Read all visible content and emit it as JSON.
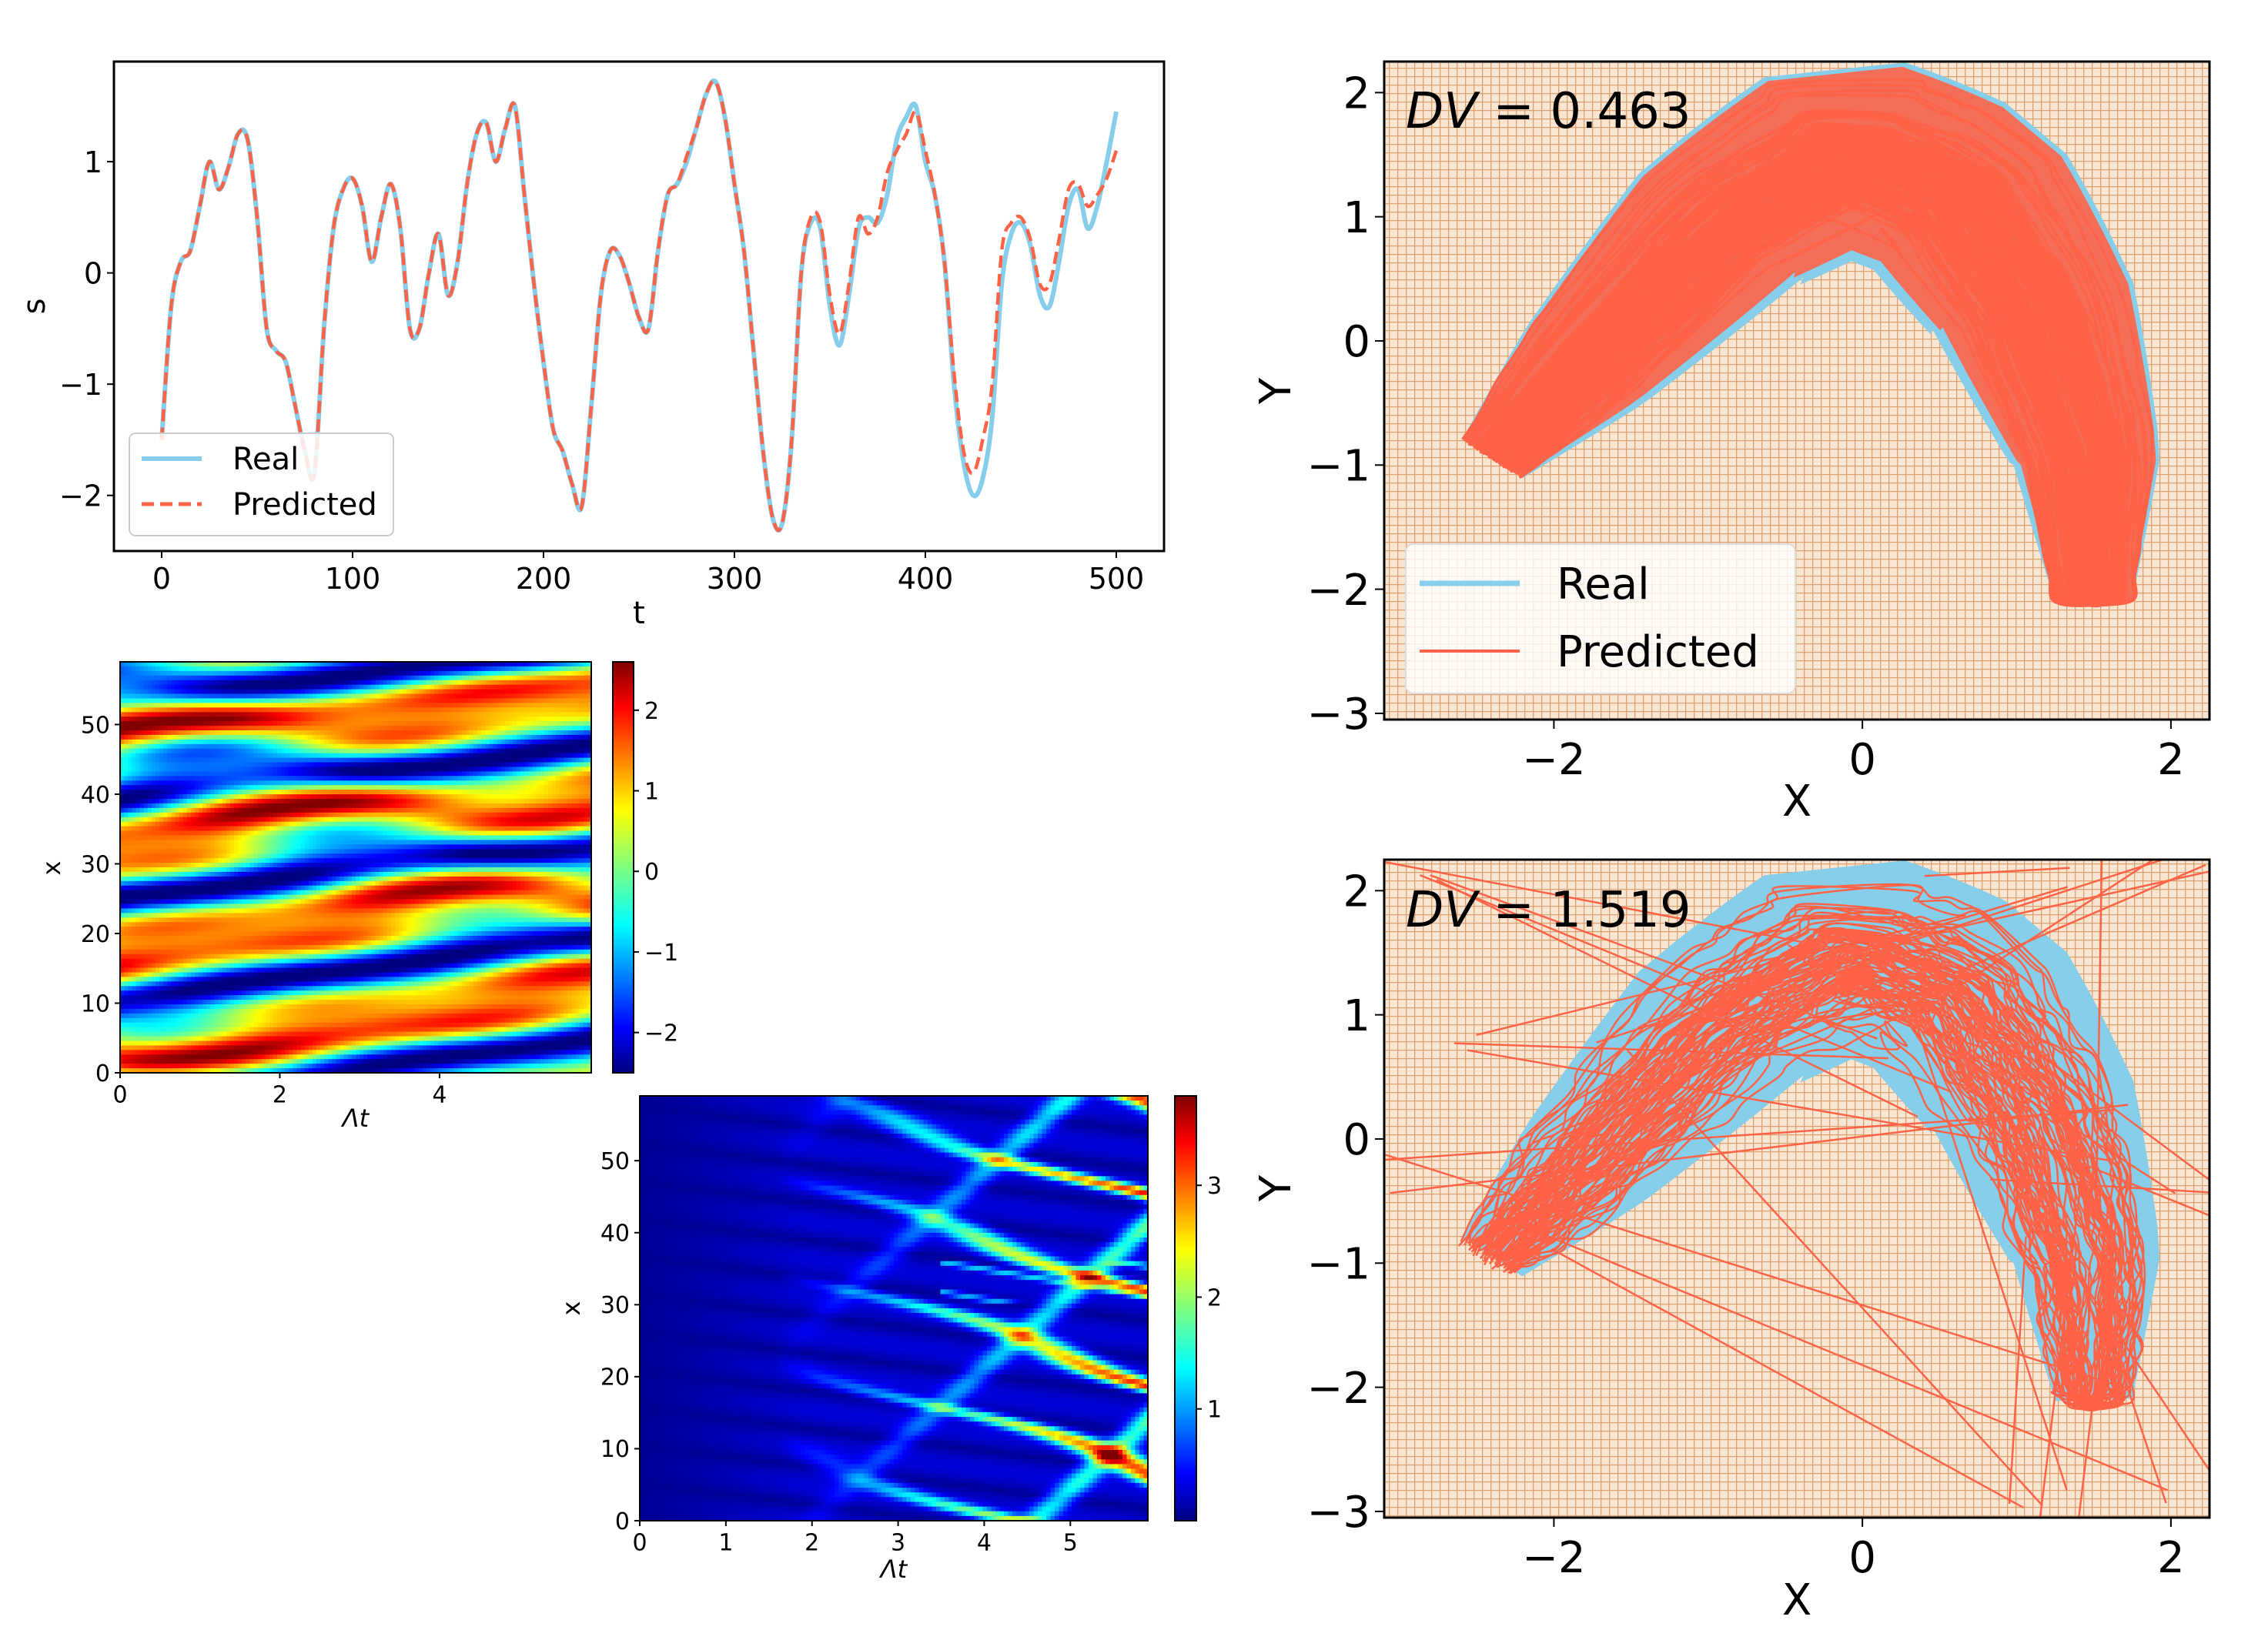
{
  "colors": {
    "real": "#87ceeb",
    "predicted": "#ff6347",
    "grid": "#dfa070",
    "gridBg": "#f9e6d2"
  },
  "chart_data": [
    {
      "id": "timeseries",
      "type": "line",
      "title": "",
      "xlabel": "t",
      "ylabel": "s",
      "xlim": [
        -25,
        525
      ],
      "ylim": [
        -2.5,
        1.9
      ],
      "xticks": [
        0,
        100,
        200,
        300,
        400,
        500
      ],
      "xtick_labels": [
        "0",
        "100",
        "200",
        "300",
        "400",
        "500"
      ],
      "yticks": [
        -2,
        -1,
        0,
        1
      ],
      "ytick_labels": [
        "−2",
        "−1",
        "0",
        "1"
      ],
      "legend": {
        "position": "lower-left",
        "entries": [
          "Real",
          "Predicted"
        ]
      },
      "series": [
        {
          "name": "Real",
          "style": "solid",
          "x": [
            0,
            5,
            10,
            15,
            20,
            25,
            30,
            35,
            40,
            45,
            50,
            55,
            60,
            65,
            70,
            75,
            80,
            85,
            90,
            95,
            100,
            105,
            110,
            115,
            120,
            125,
            130,
            135,
            140,
            145,
            150,
            155,
            160,
            165,
            170,
            175,
            180,
            185,
            190,
            195,
            200,
            205,
            210,
            215,
            220,
            225,
            230,
            235,
            240,
            245,
            250,
            255,
            260,
            265,
            270,
            275,
            280,
            285,
            290,
            295,
            300,
            305,
            310,
            315,
            320,
            325,
            330,
            335,
            340,
            345,
            350,
            355,
            360,
            365,
            370,
            375,
            380,
            385,
            390,
            395,
            400,
            405,
            410,
            415,
            420,
            425,
            430,
            435,
            440,
            445,
            450,
            455,
            460,
            465,
            470,
            475,
            480,
            485,
            490,
            495,
            500
          ],
          "y": [
            -1.5,
            -0.3,
            0.1,
            0.2,
            0.6,
            1.0,
            0.75,
            0.95,
            1.25,
            1.2,
            0.5,
            -0.5,
            -0.7,
            -0.8,
            -1.2,
            -1.6,
            -1.8,
            -0.5,
            0.4,
            0.75,
            0.85,
            0.6,
            0.1,
            0.5,
            0.8,
            0.4,
            -0.5,
            -0.5,
            0.0,
            0.35,
            -0.2,
            0.1,
            0.8,
            1.25,
            1.35,
            1.0,
            1.3,
            1.5,
            0.7,
            -0.1,
            -0.8,
            -1.4,
            -1.6,
            -1.9,
            -2.1,
            -1.2,
            -0.2,
            0.2,
            0.15,
            -0.1,
            -0.4,
            -0.5,
            0.2,
            0.7,
            0.8,
            1.0,
            1.3,
            1.6,
            1.72,
            1.4,
            0.8,
            0.2,
            -0.7,
            -1.6,
            -2.2,
            -2.25,
            -1.5,
            0.0,
            0.45,
            0.4,
            -0.3,
            -0.65,
            -0.2,
            0.4,
            0.5,
            0.45,
            0.7,
            1.2,
            1.4,
            1.5,
            1.0,
            0.7,
            0.1,
            -1.0,
            -1.7,
            -2.0,
            -1.85,
            -1.3,
            -0.1,
            0.35,
            0.45,
            0.25,
            -0.2,
            -0.3,
            0.1,
            0.6,
            0.75,
            0.4,
            0.6,
            1.0,
            1.45
          ]
        },
        {
          "name": "Predicted",
          "style": "dashed",
          "x": [
            0,
            5,
            10,
            15,
            20,
            25,
            30,
            35,
            40,
            45,
            50,
            55,
            60,
            65,
            70,
            75,
            80,
            85,
            90,
            95,
            100,
            105,
            110,
            115,
            120,
            125,
            130,
            135,
            140,
            145,
            150,
            155,
            160,
            165,
            170,
            175,
            180,
            185,
            190,
            195,
            200,
            205,
            210,
            215,
            220,
            225,
            230,
            235,
            240,
            245,
            250,
            255,
            260,
            265,
            270,
            275,
            280,
            285,
            290,
            295,
            300,
            305,
            310,
            315,
            320,
            325,
            330,
            335,
            340,
            345,
            350,
            355,
            360,
            365,
            370,
            375,
            380,
            385,
            390,
            395,
            400,
            405,
            410,
            415,
            420,
            425,
            430,
            435,
            440,
            445,
            450,
            455,
            460,
            465,
            470,
            475,
            480,
            485,
            490,
            495,
            500
          ],
          "y": [
            -1.5,
            -0.3,
            0.1,
            0.2,
            0.6,
            1.0,
            0.75,
            0.95,
            1.25,
            1.2,
            0.5,
            -0.5,
            -0.7,
            -0.8,
            -1.2,
            -1.6,
            -1.8,
            -0.5,
            0.4,
            0.75,
            0.85,
            0.6,
            0.1,
            0.5,
            0.8,
            0.4,
            -0.5,
            -0.5,
            0.0,
            0.35,
            -0.2,
            0.1,
            0.8,
            1.25,
            1.35,
            1.0,
            1.3,
            1.5,
            0.7,
            -0.1,
            -0.8,
            -1.4,
            -1.6,
            -1.9,
            -2.1,
            -1.2,
            -0.2,
            0.2,
            0.15,
            -0.1,
            -0.4,
            -0.5,
            0.2,
            0.7,
            0.8,
            1.05,
            1.3,
            1.6,
            1.72,
            1.4,
            0.8,
            0.2,
            -0.7,
            -1.6,
            -2.2,
            -2.25,
            -1.5,
            0.0,
            0.5,
            0.45,
            -0.2,
            -0.55,
            -0.1,
            0.5,
            0.35,
            0.5,
            0.9,
            1.1,
            1.25,
            1.45,
            1.1,
            0.7,
            0.1,
            -0.9,
            -1.6,
            -1.8,
            -1.5,
            -1.0,
            0.2,
            0.45,
            0.5,
            0.3,
            -0.1,
            -0.1,
            0.3,
            0.75,
            0.8,
            0.6,
            0.7,
            0.85,
            1.1
          ]
        }
      ]
    },
    {
      "id": "heatmap-field",
      "type": "heatmap",
      "xlabel": "Λt",
      "ylabel": "x",
      "xlim": [
        0,
        5.9
      ],
      "ylim": [
        0,
        59
      ],
      "xticks": [
        0,
        2,
        4
      ],
      "xtick_labels": [
        "0",
        "2",
        "4"
      ],
      "yticks": [
        0,
        10,
        20,
        30,
        40,
        50
      ],
      "ytick_labels": [
        "0",
        "10",
        "20",
        "30",
        "40",
        "50"
      ],
      "colormap": "jet",
      "vmin": -2.5,
      "vmax": 2.6,
      "colorbar_ticks": [
        -2,
        -1,
        0,
        1,
        2
      ],
      "colorbar_tick_labels": [
        "−2",
        "−1",
        "0",
        "1",
        "2"
      ],
      "description_values": "wavy diagonal stripes of alternating high (red) and low (blue) values"
    },
    {
      "id": "heatmap-error",
      "type": "heatmap",
      "xlabel": "Λt",
      "ylabel": "x",
      "xlim": [
        0,
        5.9
      ],
      "ylim": [
        0,
        59
      ],
      "xticks": [
        0,
        1,
        2,
        3,
        4,
        5
      ],
      "xtick_labels": [
        "0",
        "1",
        "2",
        "3",
        "4",
        "5"
      ],
      "yticks": [
        0,
        10,
        20,
        30,
        40,
        50
      ],
      "ytick_labels": [
        "0",
        "10",
        "20",
        "30",
        "40",
        "50"
      ],
      "colormap": "jet",
      "vmin": 0.0,
      "vmax": 3.8,
      "colorbar_ticks": [
        1,
        2,
        3
      ],
      "colorbar_tick_labels": [
        "1",
        "2",
        "3"
      ],
      "description_values": "near zero for Λt < 2, growing error streaks after Λt ≈ 3"
    },
    {
      "id": "attractor-good",
      "type": "line",
      "annotation": "DV = 0.463",
      "annotation_var": "DV",
      "annotation_value": "= 0.463",
      "xlabel": "X",
      "ylabel": "Y",
      "xlim": [
        -3.1,
        2.25
      ],
      "ylim": [
        -3.05,
        2.25
      ],
      "xticks": [
        -2,
        0,
        2
      ],
      "xtick_labels": [
        "−2",
        "0",
        "2"
      ],
      "yticks": [
        -3,
        -2,
        -1,
        0,
        1,
        2
      ],
      "ytick_labels": [
        "−3",
        "−2",
        "−1",
        "0",
        "1",
        "2"
      ],
      "legend": {
        "position": "lower-left",
        "entries": [
          "Real",
          "Predicted"
        ]
      },
      "series": [
        {
          "name": "Real",
          "shape": "boomerang attractor filled region"
        },
        {
          "name": "Predicted",
          "shape": "boomerang attractor trajectory, matches real"
        }
      ]
    },
    {
      "id": "attractor-bad",
      "type": "line",
      "annotation": "DV = 1.519",
      "annotation_var": "DV",
      "annotation_value": "= 1.519",
      "xlabel": "X",
      "ylabel": "Y",
      "xlim": [
        -3.1,
        2.25
      ],
      "ylim": [
        -3.05,
        2.25
      ],
      "xticks": [
        -2,
        0,
        2
      ],
      "xtick_labels": [
        "−2",
        "0",
        "2"
      ],
      "yticks": [
        -3,
        -2,
        -1,
        0,
        1,
        2
      ],
      "ytick_labels": [
        "−3",
        "−2",
        "−1",
        "0",
        "1",
        "2"
      ],
      "series": [
        {
          "name": "Real",
          "shape": "boomerang attractor filled region"
        },
        {
          "name": "Predicted",
          "shape": "loose loops plus straight escaping segments"
        }
      ]
    }
  ]
}
